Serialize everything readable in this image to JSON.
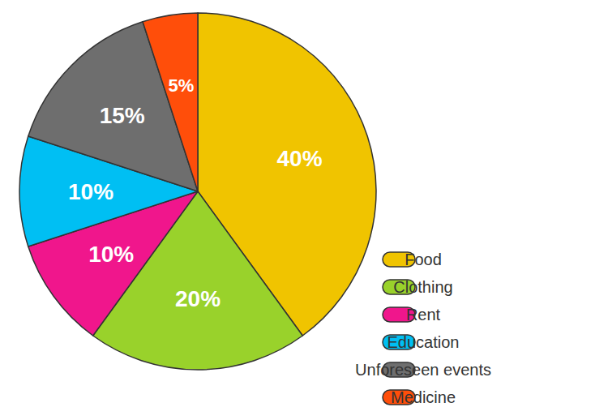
{
  "chart_data": {
    "type": "pie",
    "categories": [
      "Food",
      "Clothing",
      "Rent",
      "Education",
      "Unforeseen events",
      "Medicine"
    ],
    "values": [
      40,
      20,
      10,
      10,
      15,
      5
    ],
    "value_labels": [
      "40%",
      "20%",
      "10%",
      "10%",
      "15%",
      "5%"
    ],
    "colors": [
      "#f0c400",
      "#99d22b",
      "#f0168c",
      "#00bff3",
      "#6e6e6e",
      "#ff4e0a"
    ],
    "data_labels": true,
    "legend": "bottom-right"
  }
}
